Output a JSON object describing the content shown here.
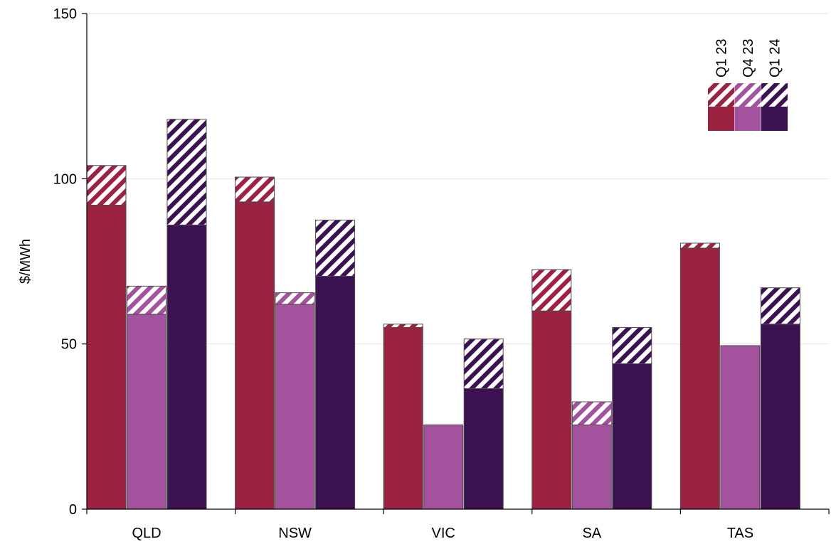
{
  "chart_data": {
    "type": "bar",
    "stacked": true,
    "categories": [
      "QLD",
      "NSW",
      "VIC",
      "SA",
      "TAS"
    ],
    "ylabel": "$/MWh",
    "ylim": [
      0,
      150
    ],
    "yticks": [
      0,
      50,
      100,
      150
    ],
    "grid": true,
    "legend_position": "top-right",
    "series": [
      {
        "name": "Q1 23",
        "color": "#9b2240",
        "base": [
          92,
          93,
          55,
          60,
          79
        ],
        "total": [
          104,
          100.5,
          56,
          72.5,
          80.5
        ]
      },
      {
        "name": "Q4 23",
        "color": "#a3529e",
        "base": [
          59,
          62,
          25.5,
          25.5,
          49.5
        ],
        "total": [
          67.5,
          65.5,
          25.5,
          32.5,
          49.5
        ]
      },
      {
        "name": "Q1 24",
        "color": "#3c1152",
        "base": [
          86,
          70.5,
          36.5,
          44,
          56
        ],
        "total": [
          118,
          87.5,
          51.5,
          55,
          67
        ]
      }
    ]
  }
}
